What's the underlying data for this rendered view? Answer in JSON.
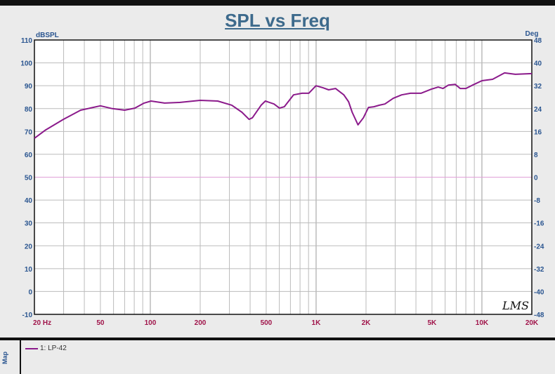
{
  "chart_data": {
    "type": "line",
    "title": "SPL vs Freq",
    "ylabel": "dBSPL",
    "y2label": "Deg",
    "xscale": "log",
    "xlim": [
      20,
      20000
    ],
    "ylim": [
      -10,
      110
    ],
    "y2lim": [
      -48,
      48
    ],
    "grid": true,
    "xticks": [
      {
        "v": 20,
        "l": "20  Hz"
      },
      {
        "v": 50,
        "l": "50"
      },
      {
        "v": 100,
        "l": "100"
      },
      {
        "v": 200,
        "l": "200"
      },
      {
        "v": 500,
        "l": "500"
      },
      {
        "v": 1000,
        "l": "1K"
      },
      {
        "v": 2000,
        "l": "2K"
      },
      {
        "v": 5000,
        "l": "5K"
      },
      {
        "v": 10000,
        "l": "10K"
      },
      {
        "v": 20000,
        "l": "20K"
      }
    ],
    "yticks": [
      110,
      100,
      90,
      80,
      70,
      60,
      50,
      40,
      30,
      20,
      10,
      0,
      -10
    ],
    "y2ticks": [
      48,
      40,
      32,
      24,
      16,
      8,
      0,
      -8,
      -16,
      -24,
      -32,
      -40,
      -48
    ],
    "series": [
      {
        "name": "1: LP-42",
        "color": "#8b1a8b",
        "x": [
          20,
          23.4,
          29.9,
          38,
          50,
          59,
          70,
          80.6,
          91.7,
          101,
          122,
          150,
          200,
          255,
          310,
          357,
          394,
          413,
          466,
          494,
          557,
          601,
          643,
          731,
          822,
          903,
          998,
          1100,
          1190,
          1310,
          1470,
          1570,
          1650,
          1790,
          1930,
          2070,
          2230,
          2410,
          2600,
          2920,
          3280,
          3710,
          4290,
          4950,
          5450,
          5820,
          6290,
          6900,
          7400,
          8000,
          8800,
          10000,
          11600,
          13700,
          15900,
          20000
        ],
        "y": [
          67,
          70.7,
          75.3,
          79.3,
          81.2,
          80,
          79.3,
          80.2,
          82.4,
          83.3,
          82.4,
          82.7,
          83.6,
          83.3,
          81.5,
          78.4,
          75.3,
          76,
          81.5,
          83.3,
          82,
          80.2,
          80.8,
          86,
          86.7,
          86.7,
          90,
          89.1,
          88.2,
          88.8,
          86,
          83,
          78.4,
          72.9,
          76,
          80.5,
          80.8,
          81.5,
          82,
          84.5,
          86,
          86.7,
          86.7,
          88.5,
          89.4,
          88.8,
          90.3,
          90.6,
          88.8,
          88.8,
          90.3,
          92.2,
          92.8,
          95.6,
          95,
          95.3
        ]
      }
    ]
  },
  "watermark": "LMS",
  "side_tab": "Map",
  "legend": {
    "entry": "1: LP-42"
  }
}
